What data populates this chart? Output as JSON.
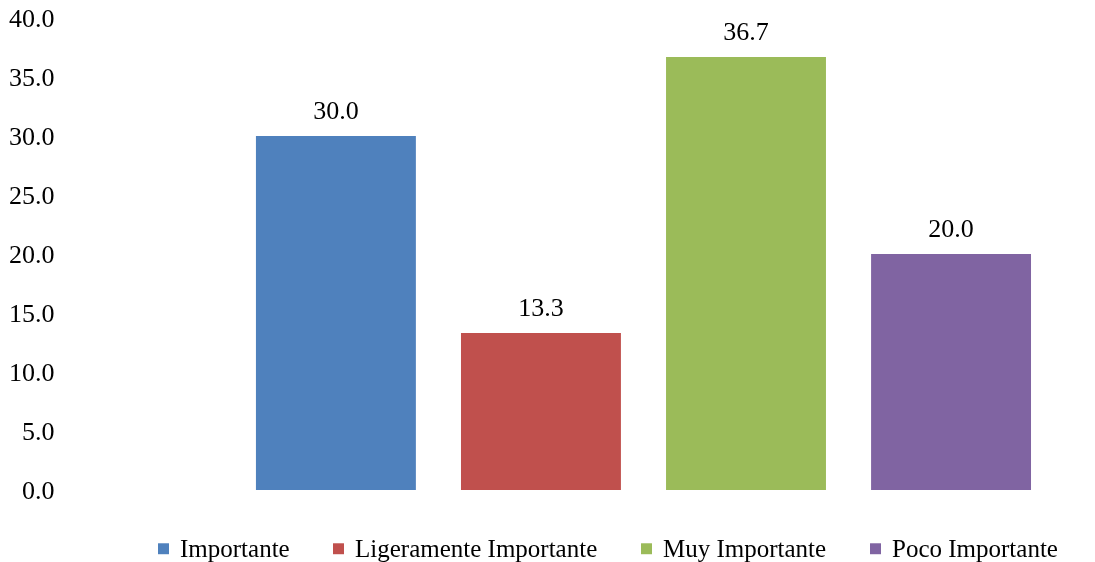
{
  "chart_data": {
    "type": "bar",
    "categories": [
      null
    ],
    "series": [
      {
        "name": "Importante",
        "color": "#4f81bd",
        "values": [
          30.0
        ],
        "value_labels": [
          "30.0"
        ]
      },
      {
        "name": "Ligeramente Importante",
        "color": "#c0504d",
        "values": [
          13.3
        ],
        "value_labels": [
          "13.3"
        ]
      },
      {
        "name": "Muy Importante",
        "color": "#9bbb59",
        "values": [
          36.7
        ],
        "value_labels": [
          "36.7"
        ]
      },
      {
        "name": "Poco Importante",
        "color": "#8064a2",
        "values": [
          20.0
        ],
        "value_labels": [
          "20.0"
        ]
      }
    ],
    "ylim": [
      0,
      40
    ],
    "yticks": [
      {
        "value": 0,
        "label": "0.0"
      },
      {
        "value": 5,
        "label": "5.0"
      },
      {
        "value": 10,
        "label": "10.0"
      },
      {
        "value": 15,
        "label": "15.0"
      },
      {
        "value": 20,
        "label": "20.0"
      },
      {
        "value": 25,
        "label": "25.0"
      },
      {
        "value": 30,
        "label": "30.0"
      },
      {
        "value": 35,
        "label": "35.0"
      },
      {
        "value": 40,
        "label": "40.0"
      }
    ],
    "legend": "bottom",
    "tick_labels": "y"
  }
}
